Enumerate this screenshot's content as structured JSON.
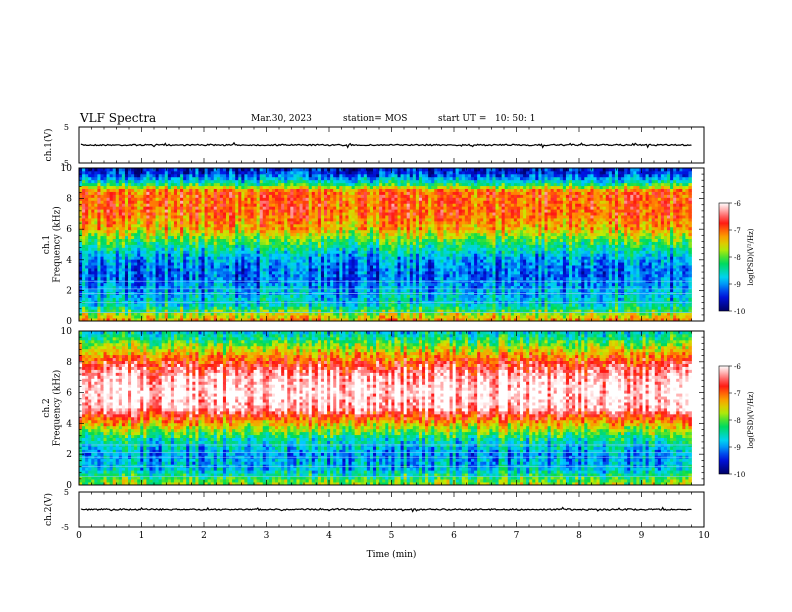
{
  "header": {
    "title": "VLF Spectra",
    "date": "Mar.30, 2023",
    "station": "station= MOS",
    "start_label": "start  UT =",
    "start_time": "10: 50: 1"
  },
  "chart_data": [
    {
      "type": "line",
      "id": "ch1-waveform",
      "ylabel": "ch.1(V)",
      "ylim": [
        -5,
        5
      ],
      "y_ticks": [
        "5",
        "-5"
      ],
      "xlim": [
        0,
        10
      ],
      "approx_level": 0
    },
    {
      "type": "heatmap",
      "id": "ch1-spectrogram",
      "ylabel_lines": [
        "ch.1",
        "Frequency (kHz)"
      ],
      "xlim": [
        0,
        10
      ],
      "data_xmax": 9.8,
      "ylim": [
        0,
        10
      ],
      "y_ticks": [
        "0",
        "2",
        "4",
        "6",
        "8",
        "10"
      ],
      "colorbar": {
        "label": "log(PSD)(V²/Hz)",
        "range": [
          -10,
          -6
        ],
        "ticks": [
          "-6",
          "-7",
          "-8",
          "-9",
          "-10"
        ]
      },
      "profile_note": "log PSD vs frequency (kHz)",
      "profile": [
        [
          0,
          -7.2
        ],
        [
          0.5,
          -7.8
        ],
        [
          1,
          -8.6
        ],
        [
          2,
          -8.9
        ],
        [
          3,
          -9.2
        ],
        [
          4,
          -9.0
        ],
        [
          5,
          -8.3
        ],
        [
          6,
          -7.4
        ],
        [
          7,
          -7.0
        ],
        [
          8.5,
          -7.0
        ],
        [
          9,
          -8.4
        ],
        [
          9.6,
          -9.3
        ],
        [
          10,
          -9.6
        ]
      ]
    },
    {
      "type": "heatmap",
      "id": "ch2-spectrogram",
      "ylabel_lines": [
        "ch.2",
        "Frequency (kHz)"
      ],
      "xlim": [
        0,
        10
      ],
      "data_xmax": 9.8,
      "ylim": [
        0,
        10
      ],
      "y_ticks": [
        "0",
        "2",
        "4",
        "6",
        "8",
        "10"
      ],
      "colorbar": {
        "label": "log(PSD)(V²/Hz)",
        "range": [
          -10,
          -6
        ],
        "ticks": [
          "-6",
          "-7",
          "-8",
          "-9",
          "-10"
        ]
      },
      "profile_note": "log PSD vs frequency (kHz)",
      "profile": [
        [
          0,
          -7.8
        ],
        [
          0.5,
          -8.2
        ],
        [
          1,
          -8.8
        ],
        [
          2,
          -9.0
        ],
        [
          3,
          -8.5
        ],
        [
          4,
          -7.4
        ],
        [
          5,
          -6.2
        ],
        [
          6,
          -6.0
        ],
        [
          7,
          -6.2
        ],
        [
          8,
          -6.8
        ],
        [
          9,
          -7.8
        ],
        [
          9.6,
          -8.4
        ],
        [
          10,
          -8.7
        ]
      ]
    },
    {
      "type": "line",
      "id": "ch2-waveform",
      "ylabel": "ch.2(V)",
      "ylim": [
        -5,
        5
      ],
      "y_ticks": [
        "5",
        "-5"
      ],
      "xlim": [
        0,
        10
      ],
      "approx_level": 0
    }
  ],
  "x_axis": {
    "label": "Time (min)",
    "range": [
      0,
      10
    ],
    "ticks": [
      "0",
      "1",
      "2",
      "3",
      "4",
      "5",
      "6",
      "7",
      "8",
      "9",
      "10"
    ]
  }
}
